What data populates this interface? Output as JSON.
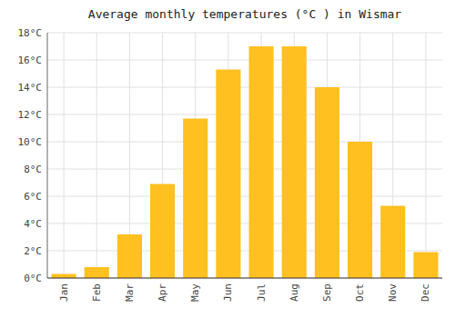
{
  "chart_data": {
    "type": "bar",
    "title": "Average monthly temperatures (°C ) in Wismar",
    "categories": [
      "Jan",
      "Feb",
      "Mar",
      "Apr",
      "May",
      "Jun",
      "Jul",
      "Aug",
      "Sep",
      "Oct",
      "Nov",
      "Dec"
    ],
    "values": [
      0.3,
      0.8,
      3.2,
      6.9,
      11.7,
      15.3,
      17.0,
      17.0,
      14.0,
      10.0,
      5.3,
      1.9
    ],
    "color": "#FFC020",
    "ylim": [
      0,
      18
    ],
    "yticks": [
      {
        "value": 0,
        "label": "0°C"
      },
      {
        "value": 2,
        "label": "2°C"
      },
      {
        "value": 4,
        "label": "4°C"
      },
      {
        "value": 6,
        "label": "6°C"
      },
      {
        "value": 8,
        "label": "8°C"
      },
      {
        "value": 10,
        "label": "10°C"
      },
      {
        "value": 12,
        "label": "12°C"
      },
      {
        "value": 14,
        "label": "14°C"
      },
      {
        "value": 16,
        "label": "16°C"
      },
      {
        "value": 18,
        "label": "18°C"
      }
    ],
    "grid": true
  }
}
